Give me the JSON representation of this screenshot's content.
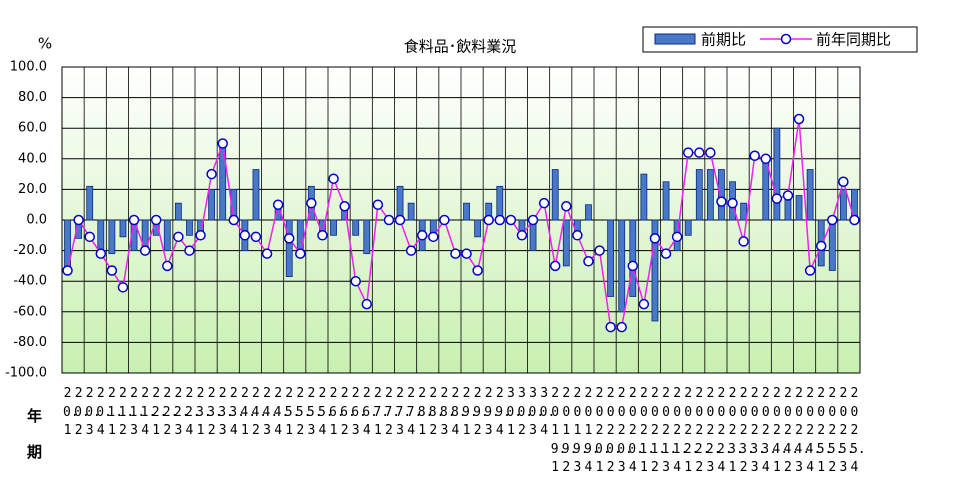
{
  "chart_data": {
    "type": "bar",
    "title": "食料品･飲料業況",
    "y_unit": "%",
    "x_label_year": "年",
    "x_label_quarter": "期",
    "categories": [
      "20.1",
      "20.2",
      "20.3",
      "20.4",
      "21.1",
      "21.2",
      "21.3",
      "21.4",
      "22.1",
      "22.2",
      "22.3",
      "22.4",
      "23.1",
      "23.2",
      "23.3",
      "23.4",
      "24.1",
      "24.2",
      "24.3",
      "24.4",
      "25.1",
      "25.2",
      "25.3",
      "25.4",
      "26.1",
      "26.2",
      "26.3",
      "26.4",
      "27.1",
      "27.2",
      "27.3",
      "27.4",
      "28.1",
      "28.2",
      "28.3",
      "28.4",
      "29.1",
      "29.2",
      "29.3",
      "29.4",
      "30.1",
      "30.2",
      "30.3",
      "30.4",
      "2019.1",
      "2019.2",
      "2019.3",
      "2019.4",
      "2020.1",
      "2020.2",
      "2020.3",
      "2020.4",
      "2021.1",
      "2021.2",
      "2021.3",
      "2021.4",
      "2022.1",
      "2022.2",
      "2022.3",
      "2022.4",
      "2023.1",
      "2023.2",
      "2023.3",
      "2023.4",
      "2024.1",
      "2024.2",
      "2024.3",
      "2024.4",
      "2025.1",
      "2025.2",
      "2025.3",
      "2025.4"
    ],
    "series": [
      {
        "name": "前期比",
        "type": "bar",
        "color": "#4a78c8",
        "stroke": "#0a2a80",
        "values": [
          -33,
          -12,
          22,
          -22,
          -22,
          -11,
          -20,
          -20,
          -10,
          -20,
          11,
          -10,
          -10,
          20,
          50,
          20,
          -20,
          33,
          0,
          10,
          -37,
          -20,
          22,
          -10,
          -10,
          10,
          -10,
          -22,
          0,
          0,
          22,
          11,
          -20,
          -10,
          0,
          0,
          11,
          -11,
          11,
          22,
          0,
          -12,
          -20,
          0,
          33,
          -30,
          -10,
          10,
          0,
          -50,
          -60,
          -50,
          30,
          -66,
          25,
          -20,
          -10,
          33,
          33,
          33,
          25,
          11,
          0,
          40,
          60,
          14,
          16,
          33,
          -30,
          -33,
          20,
          20
        ]
      },
      {
        "name": "前年同期比",
        "type": "line",
        "color": "#f020f0",
        "marker_stroke": "#0000cc",
        "values": [
          -33,
          0,
          -11,
          -22,
          -33,
          -44,
          0,
          -20,
          0,
          -30,
          -11,
          -20,
          -10,
          30,
          50,
          0,
          -10,
          -11,
          -22,
          10,
          -12,
          -22,
          11,
          -10,
          27,
          9,
          -40,
          -55,
          10,
          0,
          0,
          -20,
          -10,
          -11,
          0,
          -22,
          -22,
          -33,
          0,
          0,
          0,
          -10,
          0,
          11,
          -30,
          9,
          -10,
          -27,
          -20,
          -70,
          -70,
          -30,
          -55,
          -12,
          -22,
          -11,
          44,
          44,
          44,
          12,
          11,
          -14,
          42,
          40,
          14,
          16,
          66,
          -33,
          -17,
          0,
          25,
          0
        ]
      }
    ],
    "ylim": [
      -100,
      100
    ],
    "yticks": [
      {
        "value": -100,
        "label": "-100.0"
      },
      {
        "value": -80,
        "label": "-80.0"
      },
      {
        "value": -60,
        "label": "-60.0"
      },
      {
        "value": -40,
        "label": "-40.0"
      },
      {
        "value": -20,
        "label": "-20.0"
      },
      {
        "value": 0,
        "label": "0.0"
      },
      {
        "value": 20,
        "label": "20.0"
      },
      {
        "value": 40,
        "label": "40.0"
      },
      {
        "value": 60,
        "label": "60.0"
      },
      {
        "value": 80,
        "label": "80.0"
      },
      {
        "value": 100,
        "label": "100.0"
      }
    ],
    "grid": true,
    "legend": "top-right"
  }
}
